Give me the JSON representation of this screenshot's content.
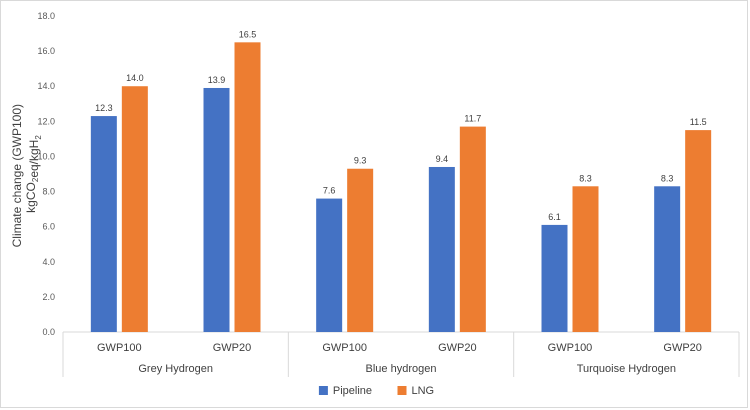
{
  "chart_data": {
    "type": "bar",
    "title": "",
    "ylabel_line1": "Climate change (GWP100)",
    "ylabel_line2": "kgCO2eq/kgH2",
    "ylim": [
      0,
      18
    ],
    "yticks": [
      "0.0",
      "2.0",
      "4.0",
      "6.0",
      "8.0",
      "10.0",
      "12.0",
      "14.0",
      "16.0",
      "18.0"
    ],
    "groups": [
      {
        "label": "Grey Hydrogen",
        "categories": [
          "GWP100",
          "GWP20"
        ]
      },
      {
        "label": "Blue hydrogen",
        "categories": [
          "GWP100",
          "GWP20"
        ]
      },
      {
        "label": "Turquoise Hydrogen",
        "categories": [
          "GWP100",
          "GWP20"
        ]
      }
    ],
    "series": [
      {
        "name": "Pipeline",
        "color": "#4472C4",
        "values": [
          12.3,
          13.9,
          7.6,
          9.4,
          6.1,
          8.3
        ]
      },
      {
        "name": "LNG",
        "color": "#ED7D31",
        "values": [
          14.0,
          16.5,
          9.3,
          11.7,
          8.3,
          11.5
        ]
      }
    ],
    "data_labels": true,
    "grid": false,
    "legend_position": "bottom"
  }
}
